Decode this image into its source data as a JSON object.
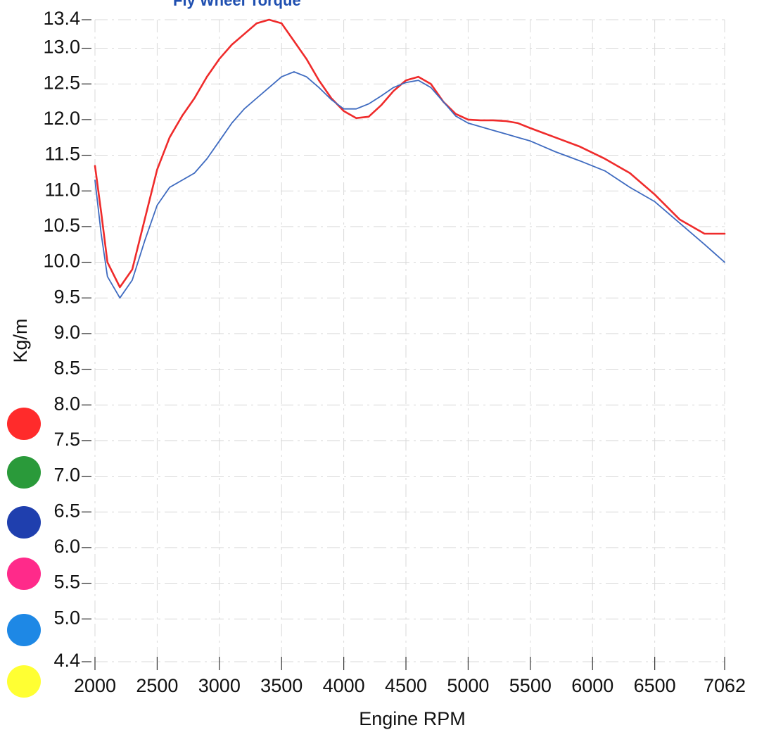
{
  "chart_data": {
    "type": "line",
    "title": "Fly Wheel Torque",
    "xlabel": "Engine RPM",
    "ylabel": "Kg/m",
    "xlim": [
      2000,
      7062
    ],
    "ylim": [
      4.4,
      13.4
    ],
    "xticks": [
      {
        "value": 2000,
        "label": "2000"
      },
      {
        "value": 2500,
        "label": "2500"
      },
      {
        "value": 3000,
        "label": "3000"
      },
      {
        "value": 3500,
        "label": "3500"
      },
      {
        "value": 4000,
        "label": "4000"
      },
      {
        "value": 4500,
        "label": "4500"
      },
      {
        "value": 5000,
        "label": "5000"
      },
      {
        "value": 5500,
        "label": "5500"
      },
      {
        "value": 6000,
        "label": "6000"
      },
      {
        "value": 6500,
        "label": "6500"
      },
      {
        "value": 7062,
        "label": "7062"
      }
    ],
    "yticks": [
      {
        "value": 13.4,
        "label": "13.4"
      },
      {
        "value": 13.0,
        "label": "13.0"
      },
      {
        "value": 12.5,
        "label": "12.5"
      },
      {
        "value": 12.0,
        "label": "12.0"
      },
      {
        "value": 11.5,
        "label": "11.5"
      },
      {
        "value": 11.0,
        "label": "11.0"
      },
      {
        "value": 10.5,
        "label": "10.5"
      },
      {
        "value": 10.0,
        "label": "10.0"
      },
      {
        "value": 9.5,
        "label": "9.5"
      },
      {
        "value": 9.0,
        "label": "9.0"
      },
      {
        "value": 8.5,
        "label": "8.5"
      },
      {
        "value": 8.0,
        "label": "8.0"
      },
      {
        "value": 7.5,
        "label": "7.5"
      },
      {
        "value": 7.0,
        "label": "7.0"
      },
      {
        "value": 6.5,
        "label": "6.5"
      },
      {
        "value": 6.0,
        "label": "6.0"
      },
      {
        "value": 5.5,
        "label": "5.5"
      },
      {
        "value": 5.0,
        "label": "5.0"
      },
      {
        "value": 4.4,
        "label": "4.4"
      }
    ],
    "grid": true,
    "legend_markers": [
      "#ff2b2b",
      "#2a9a3a",
      "#1f3fae",
      "#ff2a8a",
      "#1e88e5",
      "#ffff33"
    ],
    "series": [
      {
        "color": "#ef2b2b",
        "x": [
          2000,
          2050,
          2100,
          2200,
          2300,
          2400,
          2500,
          2600,
          2700,
          2800,
          2900,
          3000,
          3100,
          3200,
          3300,
          3400,
          3500,
          3600,
          3700,
          3800,
          3900,
          4000,
          4100,
          4200,
          4300,
          4400,
          4500,
          4600,
          4700,
          4800,
          4900,
          5000,
          5100,
          5200,
          5300,
          5400,
          5500,
          5700,
          5900,
          6100,
          6300,
          6500,
          6700,
          6900,
          7062
        ],
        "y": [
          11.35,
          10.7,
          10.0,
          9.65,
          9.9,
          10.6,
          11.3,
          11.75,
          12.05,
          12.3,
          12.6,
          12.85,
          13.05,
          13.2,
          13.35,
          13.4,
          13.35,
          13.1,
          12.85,
          12.55,
          12.3,
          12.12,
          12.02,
          12.04,
          12.2,
          12.4,
          12.55,
          12.6,
          12.5,
          12.25,
          12.08,
          12.0,
          11.99,
          11.99,
          11.98,
          11.95,
          11.88,
          11.75,
          11.62,
          11.45,
          11.25,
          10.95,
          10.6,
          10.4,
          10.4
        ]
      },
      {
        "color": "#3f6bc0",
        "x": [
          2000,
          2050,
          2100,
          2200,
          2300,
          2400,
          2500,
          2600,
          2700,
          2800,
          2900,
          3000,
          3100,
          3200,
          3300,
          3400,
          3500,
          3600,
          3700,
          3800,
          3900,
          4000,
          4100,
          4200,
          4300,
          4400,
          4500,
          4600,
          4700,
          4800,
          4900,
          5000,
          5100,
          5200,
          5300,
          5400,
          5500,
          5700,
          5900,
          6100,
          6300,
          6500,
          6700,
          6900,
          7062
        ],
        "y": [
          11.15,
          10.4,
          9.8,
          9.5,
          9.75,
          10.3,
          10.8,
          11.05,
          11.15,
          11.25,
          11.45,
          11.7,
          11.95,
          12.15,
          12.3,
          12.45,
          12.6,
          12.67,
          12.6,
          12.45,
          12.28,
          12.15,
          12.15,
          12.22,
          12.33,
          12.45,
          12.52,
          12.55,
          12.45,
          12.25,
          12.05,
          11.95,
          11.9,
          11.85,
          11.8,
          11.75,
          11.7,
          11.55,
          11.42,
          11.28,
          11.05,
          10.85,
          10.55,
          10.25,
          10.0
        ]
      }
    ]
  }
}
